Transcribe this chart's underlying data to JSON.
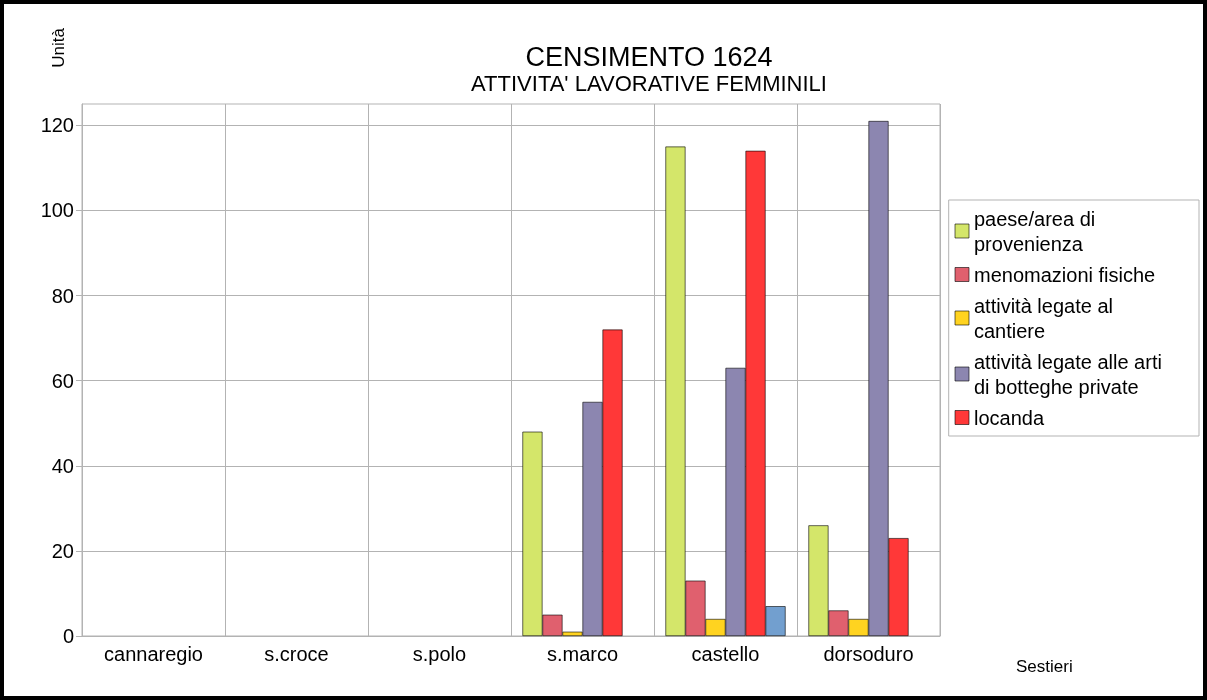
{
  "chart_data": {
    "type": "bar",
    "title": "CENSIMENTO 1624",
    "subtitle": "ATTIVITA' LAVORATIVE FEMMINILI",
    "xlabel": "Sestieri",
    "ylabel": "Unità",
    "categories": [
      "cannaregio",
      "s.croce",
      "s.polo",
      "s.marco",
      "castello",
      "dorsoduro"
    ],
    "series": [
      {
        "name": "paese/area di provenienza",
        "color": "#d4e66a",
        "values": [
          null,
          null,
          null,
          48,
          115,
          26
        ]
      },
      {
        "name": "menomazioni fisiche",
        "color": "#e0606e",
        "values": [
          null,
          null,
          null,
          5,
          13,
          6
        ]
      },
      {
        "name": "attività legate al cantiere",
        "color": "#ffd320",
        "values": [
          null,
          null,
          null,
          1,
          4,
          4
        ]
      },
      {
        "name": "attività legate alle arti di botteghe private",
        "color": "#8c86b0",
        "values": [
          null,
          null,
          null,
          55,
          63,
          121
        ]
      },
      {
        "name": "locanda",
        "color": "#ff3838",
        "values": [
          null,
          null,
          null,
          72,
          114,
          23
        ]
      },
      {
        "color": "#729fcf",
        "values": [
          null,
          null,
          null,
          null,
          7,
          null
        ]
      }
    ],
    "ylim": [
      0,
      125
    ],
    "yticks": [
      0,
      20,
      40,
      60,
      80,
      100,
      120
    ],
    "grid": true,
    "legend": "right"
  }
}
